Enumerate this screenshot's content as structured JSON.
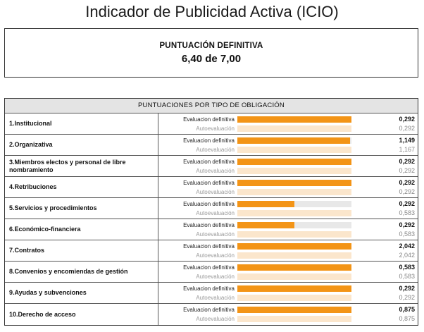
{
  "header": {
    "title": "Indicador de Publicidad Activa (ICIO)"
  },
  "score": {
    "label": "PUNTUACIÓN DEFINITIVA",
    "value": "6,40 de 7,00"
  },
  "table": {
    "title": "PUNTUACIONES POR TIPO DE OBLIGACIÓN",
    "def_label": "Evaluacion definitiva",
    "auto_label": "Autoevaluación",
    "colors": {
      "def_fill": "#f39416",
      "def_track": "#e8e8e8",
      "auto_fill": "#fbe6cc"
    },
    "rows": [
      {
        "name": "1.Institucional",
        "def": "0,292",
        "auto": "0,292",
        "def_fraction": 1.0,
        "auto_fraction": 1.0
      },
      {
        "name": "2.Organizativa",
        "def": "1,149",
        "auto": "1,167",
        "def_fraction": 0.985,
        "auto_fraction": 1.0
      },
      {
        "name": "3.Miembros electos y personal de libre nombramiento",
        "def": "0,292",
        "auto": "0,292",
        "def_fraction": 1.0,
        "auto_fraction": 1.0
      },
      {
        "name": "4.Retribuciones",
        "def": "0,292",
        "auto": "0,292",
        "def_fraction": 1.0,
        "auto_fraction": 1.0
      },
      {
        "name": "5.Servicios y procedimientos",
        "def": "0,292",
        "auto": "0,583",
        "def_fraction": 0.5,
        "auto_fraction": 1.0
      },
      {
        "name": "6.Económico-financiera",
        "def": "0,292",
        "auto": "0,583",
        "def_fraction": 0.5,
        "auto_fraction": 1.0
      },
      {
        "name": "7.Contratos",
        "def": "2,042",
        "auto": "2,042",
        "def_fraction": 1.0,
        "auto_fraction": 1.0
      },
      {
        "name": "8.Convenios y encomiendas de gestión",
        "def": "0,583",
        "auto": "0,583",
        "def_fraction": 1.0,
        "auto_fraction": 1.0
      },
      {
        "name": "9.Ayudas y subvenciones",
        "def": "0,292",
        "auto": "0,292",
        "def_fraction": 1.0,
        "auto_fraction": 1.0
      },
      {
        "name": "10.Derecho de acceso",
        "def": "0,875",
        "auto": "0,875",
        "def_fraction": 1.0,
        "auto_fraction": 1.0
      }
    ]
  }
}
